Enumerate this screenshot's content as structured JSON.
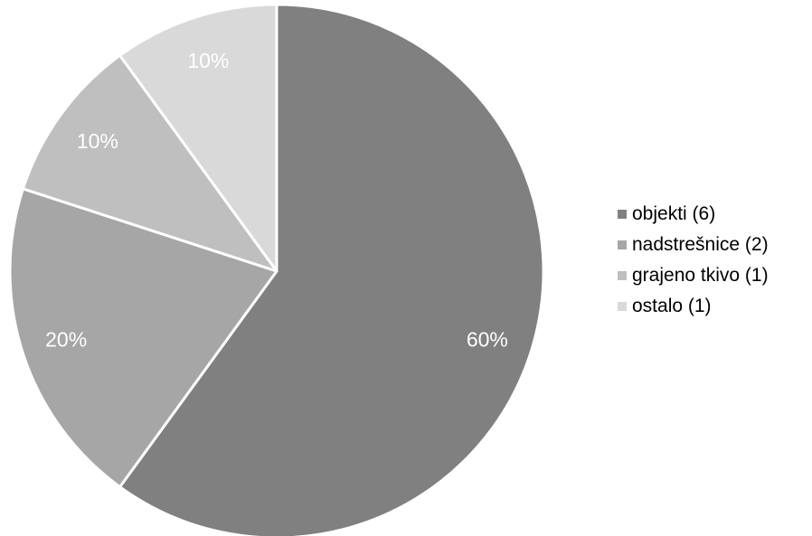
{
  "chart_data": {
    "type": "pie",
    "title": "",
    "categories": [
      "objekti (6)",
      "nadstrešnice (2)",
      "grajeno tkivo (1)",
      "ostalo (1)"
    ],
    "values": [
      6,
      2,
      1,
      1
    ],
    "percent_labels": [
      "60%",
      "20%",
      "10%",
      "10%"
    ],
    "colors": [
      "#808080",
      "#a6a6a6",
      "#bfbfbf",
      "#d9d9d9"
    ],
    "start": "12 o'clock, clockwise",
    "legend_position": "right"
  }
}
